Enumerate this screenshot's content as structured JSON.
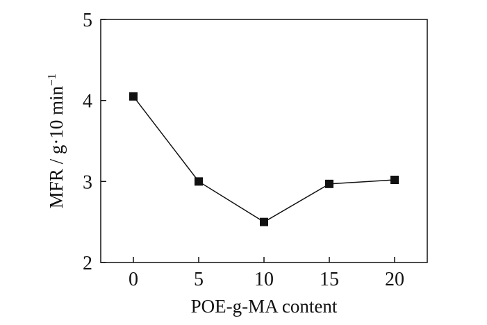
{
  "chart_data": {
    "type": "line",
    "title": "",
    "xlabel": "POE-g-MA content",
    "ylabel_main": "MFR / g·10 min",
    "ylabel_sup": "−1",
    "x": [
      0,
      5,
      10,
      15,
      20
    ],
    "x_ticks": [
      "0",
      "5",
      "10",
      "15",
      "20"
    ],
    "xlim": [
      -2.5,
      22.5
    ],
    "y_ticks": [
      "2",
      "3",
      "4",
      "5"
    ],
    "ylim": [
      2,
      5
    ],
    "series": [
      {
        "values": [
          4.05,
          3.0,
          2.5,
          2.97,
          3.02
        ]
      }
    ],
    "marker": "square",
    "line_color": "#111111",
    "marker_color": "#111111",
    "grid": false,
    "legend": "none"
  }
}
